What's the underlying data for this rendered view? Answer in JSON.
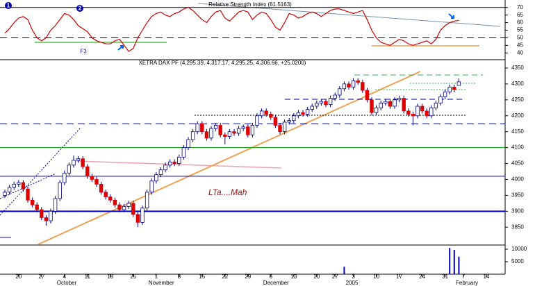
{
  "chart_data": [
    {
      "type": "line",
      "title": "Relative Strength Index (61.5163)",
      "color": "#cc0000",
      "values": [
        53,
        56,
        60,
        63,
        64,
        62,
        55,
        50,
        48,
        50,
        55,
        58,
        62,
        66,
        65,
        62,
        58,
        56,
        54,
        50,
        48,
        47,
        46,
        46,
        48,
        49,
        45,
        41,
        43,
        50,
        55,
        60,
        64,
        66,
        67,
        65,
        64,
        66,
        67,
        69,
        70,
        68,
        65,
        62,
        60,
        64,
        67,
        68,
        63,
        61,
        64,
        67,
        68,
        67,
        62,
        65,
        67,
        66,
        62,
        57,
        55,
        60,
        66,
        65,
        63,
        64,
        66,
        67,
        66,
        64,
        66,
        68,
        69,
        69,
        68,
        67,
        66,
        67,
        68,
        62,
        55,
        50,
        47,
        46,
        45,
        47,
        49,
        48,
        46,
        45,
        46,
        47,
        48,
        46,
        49,
        55,
        58,
        60,
        61,
        61.5163,
        null,
        null,
        null,
        null,
        null,
        null,
        null,
        null,
        null
      ],
      "ylim": [
        36,
        74
      ],
      "yticks": [
        40,
        45,
        50,
        55,
        60,
        65,
        70
      ],
      "levels": [
        {
          "value": 70,
          "style": "solid"
        },
        {
          "value": 50,
          "style": "dashed"
        }
      ],
      "annotations": [
        "1",
        "2",
        "F3"
      ]
    },
    {
      "type": "candlestick",
      "title": "XETRA DAX PF (4,295.39, 4,317.17, 4,295.25, 4,306.66, +25.0200)",
      "up_color": "#ffffff",
      "down_color": "#e00000",
      "edge_color": "#000080",
      "open": [
        3950,
        3960,
        3975,
        3985,
        3990,
        3970,
        3935,
        3920,
        3905,
        3880,
        3870,
        3900,
        3940,
        3990,
        4020,
        4045,
        4060,
        4065,
        4040,
        4010,
        4000,
        3985,
        3960,
        3945,
        3935,
        3920,
        3905,
        3915,
        3925,
        3890,
        3865,
        3910,
        3960,
        3995,
        4015,
        4030,
        4045,
        4055,
        4050,
        4070,
        4100,
        4125,
        4150,
        4175,
        4150,
        4130,
        4160,
        4170,
        4140,
        4135,
        4150,
        4145,
        4160,
        4165,
        4140,
        4170,
        4200,
        4215,
        4205,
        4195,
        4170,
        4150,
        4180,
        4185,
        4200,
        4210,
        4205,
        4220,
        4230,
        4240,
        4245,
        4235,
        4255,
        4265,
        4285,
        4300,
        4290,
        4310,
        4305,
        4280,
        4250,
        4210,
        4225,
        4240,
        4245,
        4230,
        4250,
        4255,
        4215,
        4205,
        4200,
        4230,
        4215,
        4200,
        4225,
        4240,
        4260,
        4275,
        4290,
        4295.39,
        null,
        null,
        null,
        null,
        null,
        null,
        null,
        null,
        null
      ],
      "high": [
        3968,
        3983,
        3993,
        3998,
        3998,
        3978,
        3943,
        3928,
        3913,
        3888,
        3908,
        3948,
        3998,
        4028,
        4053,
        4075,
        4073,
        4073,
        4048,
        4018,
        4008,
        3993,
        3968,
        3953,
        3943,
        3928,
        3923,
        3933,
        3933,
        3898,
        3918,
        3968,
        4003,
        4023,
        4038,
        4053,
        4063,
        4063,
        4078,
        4108,
        4133,
        4158,
        4183,
        4183,
        4158,
        4168,
        4178,
        4178,
        4148,
        4158,
        4158,
        4168,
        4173,
        4173,
        4178,
        4208,
        4223,
        4223,
        4213,
        4203,
        4178,
        4188,
        4193,
        4208,
        4218,
        4218,
        4228,
        4238,
        4248,
        4253,
        4253,
        4263,
        4273,
        4293,
        4308,
        4308,
        4318,
        4318,
        4313,
        4288,
        4258,
        4233,
        4248,
        4253,
        4253,
        4258,
        4263,
        4263,
        4223,
        4213,
        4238,
        4238,
        4223,
        4233,
        4248,
        4268,
        4283,
        4298,
        4298,
        4317.17,
        null,
        null,
        null,
        null,
        null,
        null,
        null,
        null,
        null
      ],
      "low": [
        3942,
        3952,
        3967,
        3977,
        3962,
        3927,
        3912,
        3897,
        3872,
        3855,
        3862,
        3892,
        3932,
        3982,
        4012,
        4037,
        4052,
        4032,
        4002,
        3992,
        3977,
        3952,
        3937,
        3927,
        3912,
        3897,
        3897,
        3907,
        3882,
        3850,
        3857,
        3902,
        3952,
        3987,
        4007,
        4022,
        4037,
        4042,
        4042,
        4062,
        4092,
        4117,
        4142,
        4142,
        4122,
        4122,
        4152,
        4132,
        4110,
        4127,
        4137,
        4137,
        4152,
        4132,
        4132,
        4162,
        4192,
        4197,
        4187,
        4162,
        4142,
        4142,
        4172,
        4177,
        4192,
        4197,
        4197,
        4212,
        4222,
        4232,
        4227,
        4227,
        4247,
        4257,
        4277,
        4282,
        4282,
        4297,
        4272,
        4242,
        4202,
        4202,
        4217,
        4232,
        4222,
        4222,
        4242,
        4207,
        4197,
        4170,
        4192,
        4207,
        4192,
        4192,
        4217,
        4232,
        4252,
        4267,
        4274,
        4295.25,
        null,
        null,
        null,
        null,
        null,
        null,
        null,
        null,
        null
      ],
      "close": [
        3960,
        3975,
        3985,
        3990,
        3970,
        3935,
        3920,
        3905,
        3880,
        3870,
        3900,
        3940,
        3990,
        4020,
        4045,
        4060,
        4065,
        4040,
        4010,
        4000,
        3985,
        3960,
        3945,
        3935,
        3920,
        3905,
        3915,
        3925,
        3890,
        3865,
        3910,
        3960,
        3995,
        4015,
        4030,
        4045,
        4055,
        4050,
        4070,
        4100,
        4125,
        4150,
        4175,
        4150,
        4130,
        4160,
        4170,
        4140,
        4135,
        4150,
        4145,
        4160,
        4165,
        4140,
        4170,
        4200,
        4215,
        4205,
        4195,
        4170,
        4150,
        4180,
        4185,
        4200,
        4210,
        4205,
        4220,
        4230,
        4240,
        4245,
        4235,
        4255,
        4265,
        4285,
        4300,
        4290,
        4310,
        4305,
        4280,
        4250,
        4210,
        4225,
        4240,
        4245,
        4230,
        4250,
        4255,
        4215,
        4205,
        4200,
        4230,
        4215,
        4200,
        4225,
        4240,
        4260,
        4275,
        4290,
        4282,
        4306.66,
        null,
        null,
        null,
        null,
        null,
        null,
        null,
        null,
        null
      ],
      "ylim": [
        3796,
        4374
      ],
      "yticks": [
        3850,
        3900,
        3950,
        4000,
        4050,
        4100,
        4150,
        4200,
        4250,
        4300,
        4350
      ],
      "levels": [
        {
          "value": 4175,
          "color": "#000099",
          "style": "dashed"
        },
        {
          "value": 4100,
          "color": "#00a000",
          "style": "solid"
        },
        {
          "value": 4010,
          "color": "#0000cc",
          "style": "solid"
        },
        {
          "value": 3900,
          "color": "#0000cc",
          "style": "thick"
        }
      ],
      "annotations": [
        "LTa....Mah"
      ]
    },
    {
      "type": "bar",
      "color": "#0000cc",
      "values": [
        0,
        0,
        0,
        0,
        0,
        0,
        0,
        0,
        0,
        0,
        0,
        0,
        0,
        0,
        0,
        0,
        0,
        0,
        0,
        0,
        0,
        0,
        0,
        0,
        0,
        0,
        0,
        0,
        0,
        0,
        0,
        0,
        0,
        0,
        0,
        0,
        0,
        0,
        0,
        0,
        0,
        0,
        0,
        0,
        0,
        0,
        0,
        0,
        0,
        0,
        0,
        0,
        0,
        0,
        0,
        0,
        0,
        0,
        0,
        0,
        0,
        0,
        0,
        0,
        0,
        0,
        0,
        0,
        0,
        0,
        0,
        0,
        0,
        0,
        3000,
        0,
        0,
        0,
        0,
        0,
        0,
        0,
        0,
        0,
        0,
        0,
        0,
        0,
        0,
        0,
        0,
        0,
        0,
        0,
        0,
        0,
        0,
        10500,
        9700,
        7000,
        null,
        null,
        null,
        null,
        null,
        null,
        null,
        null,
        null
      ],
      "ylim": [
        0,
        11100
      ],
      "yticks": [
        5000,
        10000
      ],
      "categories": [
        null,
        null,
        null,
        "20",
        null,
        null,
        null,
        null,
        "27",
        null,
        null,
        null,
        null,
        "4",
        null,
        null,
        null,
        null,
        "11",
        null,
        null,
        null,
        null,
        "18",
        null,
        null,
        null,
        null,
        "25",
        null,
        null,
        null,
        null,
        "1",
        null,
        null,
        null,
        null,
        "8",
        null,
        null,
        null,
        null,
        "15",
        null,
        null,
        null,
        null,
        "22",
        null,
        null,
        null,
        null,
        "29",
        null,
        null,
        null,
        null,
        "6",
        null,
        null,
        null,
        null,
        "13",
        null,
        null,
        null,
        null,
        "20",
        null,
        null,
        null,
        "27",
        null,
        null,
        null,
        "3",
        null,
        null,
        null,
        null,
        "10",
        null,
        null,
        null,
        null,
        "17",
        null,
        null,
        null,
        null,
        "24",
        null,
        null,
        null,
        null,
        "31",
        null,
        null,
        null,
        "7",
        null,
        null,
        null,
        null,
        "14",
        null,
        null,
        null
      ],
      "months": [
        null,
        null,
        null,
        null,
        null,
        null,
        null,
        null,
        null,
        null,
        null,
        null,
        null,
        "October",
        null,
        null,
        null,
        null,
        null,
        null,
        null,
        null,
        null,
        null,
        null,
        null,
        null,
        null,
        null,
        null,
        null,
        null,
        null,
        "November",
        null,
        null,
        null,
        null,
        null,
        null,
        null,
        null,
        null,
        null,
        null,
        null,
        null,
        null,
        null,
        null,
        null,
        null,
        null,
        null,
        null,
        null,
        null,
        null,
        "December",
        null,
        null,
        null,
        null,
        null,
        null,
        null,
        null,
        null,
        null,
        null,
        null,
        null,
        null,
        null,
        null,
        null,
        "2005",
        null,
        null,
        null,
        null,
        null,
        null,
        null,
        null,
        null,
        null,
        null,
        null,
        null,
        null,
        null,
        null,
        null,
        null,
        null,
        null,
        null,
        null,
        null,
        "February",
        null,
        null,
        null,
        null,
        null,
        null,
        null,
        null
      ]
    }
  ]
}
